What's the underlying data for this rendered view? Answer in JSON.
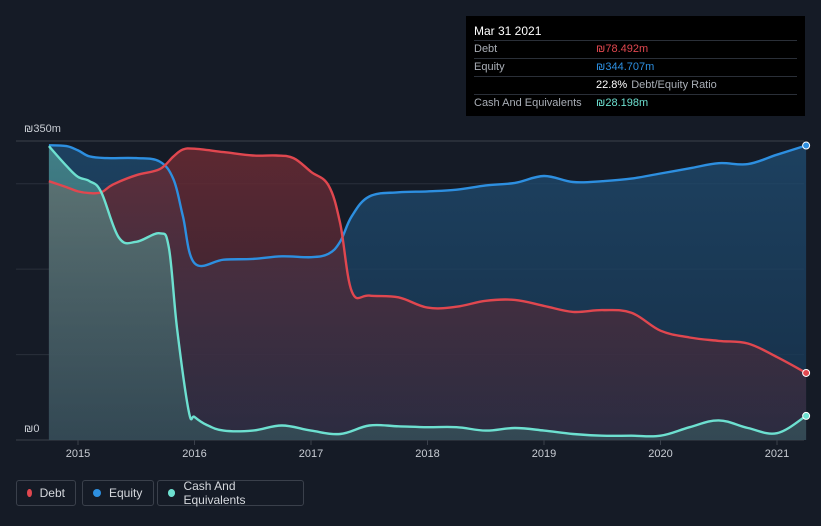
{
  "tooltip": {
    "date": "Mar 31 2021",
    "debt_label": "Debt",
    "debt_value": "₪78.492m",
    "equity_label": "Equity",
    "equity_value": "₪344.707m",
    "ratio_value": "22.8%",
    "ratio_label": "Debt/Equity Ratio",
    "cash_label": "Cash And Equivalents",
    "cash_value": "₪28.198m"
  },
  "legend": {
    "debt": "Debt",
    "equity": "Equity",
    "cash": "Cash And Equivalents"
  },
  "colors": {
    "debt": "#e0474f",
    "equity": "#2d8fe0",
    "cash": "#6de0d0",
    "background": "#151b26"
  },
  "chart_data": {
    "type": "area",
    "title": "",
    "xlabel": "",
    "ylabel": "",
    "currency": "₪",
    "ylim": [
      0,
      350
    ],
    "y_tick_labels": [
      "₪350m",
      "₪0"
    ],
    "x_tick_labels": [
      "2015",
      "2016",
      "2017",
      "2018",
      "2019",
      "2020",
      "2021"
    ],
    "x_ticks": [
      2015,
      2016,
      2017,
      2018,
      2019,
      2020,
      2021
    ],
    "xlim": [
      2014.3,
      2021.25
    ],
    "series": [
      {
        "name": "Debt",
        "x": [
          2014.75,
          2014.9,
          2015.0,
          2015.1,
          2015.2,
          2015.3,
          2015.5,
          2015.7,
          2015.82,
          2015.9,
          2016.0,
          2016.25,
          2016.5,
          2016.7,
          2016.85,
          2017.0,
          2017.15,
          2017.25,
          2017.35,
          2017.5,
          2017.75,
          2018.0,
          2018.25,
          2018.5,
          2018.75,
          2019.0,
          2019.25,
          2019.5,
          2019.75,
          2020.0,
          2020.25,
          2020.5,
          2020.75,
          2021.0,
          2021.25
        ],
        "values": [
          303,
          296,
          291,
          289,
          290,
          299,
          310,
          317,
          332,
          340,
          341,
          337,
          333,
          333,
          330,
          314,
          298,
          254,
          174,
          169,
          167,
          155,
          156,
          163,
          164,
          157,
          150,
          152,
          149,
          128,
          120,
          116,
          113,
          97,
          78.5
        ]
      },
      {
        "name": "Equity",
        "x": [
          2014.75,
          2014.9,
          2015.0,
          2015.1,
          2015.25,
          2015.5,
          2015.7,
          2015.82,
          2015.9,
          2016.0,
          2016.25,
          2016.5,
          2016.75,
          2017.0,
          2017.15,
          2017.25,
          2017.35,
          2017.5,
          2017.75,
          2018.0,
          2018.25,
          2018.5,
          2018.75,
          2019.0,
          2019.25,
          2019.5,
          2019.75,
          2020.0,
          2020.25,
          2020.5,
          2020.75,
          2021.0,
          2021.25
        ],
        "values": [
          345,
          344,
          339,
          332,
          330,
          330,
          326,
          305,
          262,
          207,
          211,
          212,
          215,
          214,
          218,
          232,
          262,
          285,
          290,
          291,
          293,
          298,
          301,
          309,
          302,
          303,
          306,
          312,
          318,
          324,
          323,
          334,
          344.7
        ]
      },
      {
        "name": "Cash And Equivalents",
        "x": [
          2014.75,
          2014.9,
          2015.0,
          2015.1,
          2015.2,
          2015.35,
          2015.5,
          2015.7,
          2015.78,
          2015.85,
          2015.95,
          2016.0,
          2016.1,
          2016.25,
          2016.5,
          2016.75,
          2017.0,
          2017.25,
          2017.5,
          2017.75,
          2018.0,
          2018.25,
          2018.5,
          2018.75,
          2019.0,
          2019.25,
          2019.5,
          2019.75,
          2020.0,
          2020.25,
          2020.5,
          2020.75,
          2021.0,
          2021.25
        ],
        "values": [
          344,
          321,
          308,
          303,
          290,
          237,
          232,
          242,
          225,
          131,
          34,
          27,
          18,
          11,
          11,
          17,
          11,
          7,
          17,
          16,
          15,
          15,
          11,
          14,
          11,
          7,
          5,
          5,
          5,
          15,
          23,
          14,
          8,
          28.2
        ]
      }
    ],
    "annotation": "Mar 31 2021"
  }
}
